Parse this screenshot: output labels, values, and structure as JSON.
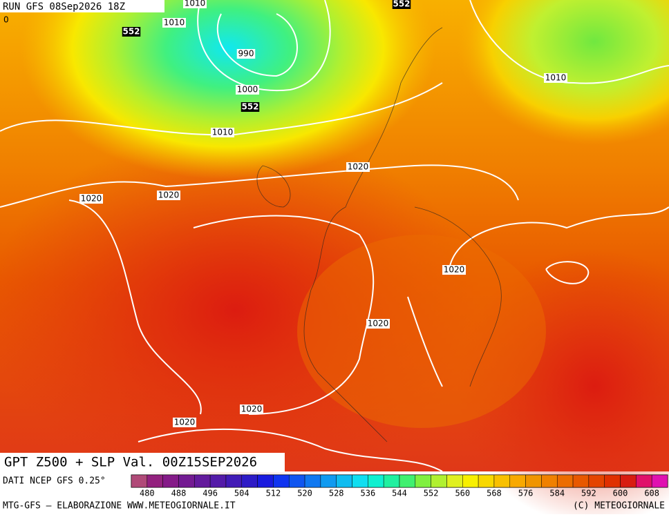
{
  "header": {
    "run": "RUN GFS 08Sep2026 18Z",
    "title": "GPT Z500 + SLP Val. 00Z15SEP2026"
  },
  "map_labels": [
    {
      "text": "1010",
      "kind": "isobar"
    },
    {
      "text": "1010",
      "kind": "isobar"
    },
    {
      "text": "552",
      "kind": "geopotential"
    },
    {
      "text": "990",
      "kind": "isobar"
    },
    {
      "text": "1000",
      "kind": "isobar"
    },
    {
      "text": "552",
      "kind": "geopotential"
    },
    {
      "text": "1010",
      "kind": "isobar"
    },
    {
      "text": "552",
      "kind": "geopotential"
    },
    {
      "text": "1010",
      "kind": "isobar"
    },
    {
      "text": "1020",
      "kind": "isobar"
    },
    {
      "text": "1020",
      "kind": "isobar"
    },
    {
      "text": "1020",
      "kind": "isobar"
    },
    {
      "text": "1020",
      "kind": "isobar"
    },
    {
      "text": "1020",
      "kind": "isobar"
    },
    {
      "text": "1020",
      "kind": "isobar"
    },
    {
      "text": "1020",
      "kind": "isobar"
    },
    {
      "text": "0",
      "kind": "edge"
    }
  ],
  "legend": {
    "source": "DATI NCEP GFS 0.25°",
    "colors": [
      "#b04a78",
      "#93217e",
      "#851a88",
      "#741a92",
      "#641a9c",
      "#541aa8",
      "#421ab6",
      "#2e1ac6",
      "#1a1ade",
      "#1034f0",
      "#1056f0",
      "#1078f0",
      "#109af0",
      "#10bcf0",
      "#10def0",
      "#10f0d0",
      "#20f0a0",
      "#40f070",
      "#80f040",
      "#b0f030",
      "#e0f020",
      "#f8f000",
      "#f8d800",
      "#f8c000",
      "#f8a800",
      "#f09400",
      "#f08000",
      "#ec6c00",
      "#e85800",
      "#e44400",
      "#e03000",
      "#d81c10",
      "#e0106a",
      "#e010b0"
    ],
    "ticks": [
      480,
      488,
      496,
      504,
      512,
      520,
      528,
      536,
      544,
      552,
      560,
      568,
      576,
      584,
      592,
      600,
      608
    ]
  },
  "footer": {
    "credit": "MTG-GFS — ELABORAZIONE WWW.METEOGIORNALE.IT",
    "copyright": "(C) METEOGIORNALE"
  }
}
